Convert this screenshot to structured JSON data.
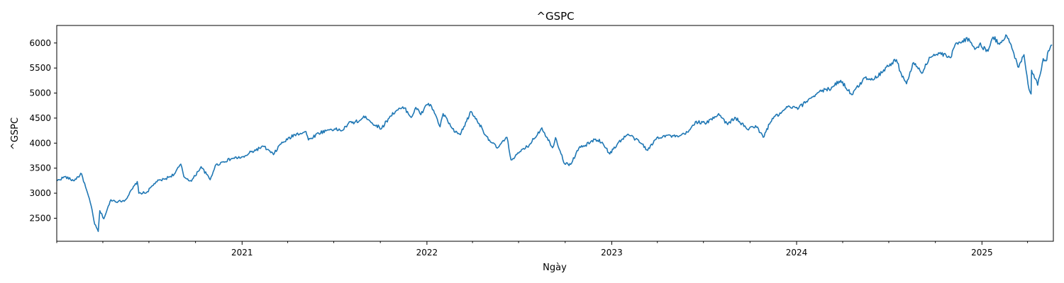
{
  "chart_data": {
    "type": "line",
    "title": "^GSPC",
    "xlabel": "Ngày",
    "ylabel": "^GSPC",
    "xlim": [
      "2020-01-01",
      "2025-05-22"
    ],
    "ylim": [
      2040,
      6350
    ],
    "yticks": [
      2500,
      3000,
      3500,
      4000,
      4500,
      5000,
      5500,
      6000
    ],
    "xticks": [
      {
        "date": "2021-01-01",
        "label": "2021"
      },
      {
        "date": "2022-01-01",
        "label": "2022"
      },
      {
        "date": "2023-01-01",
        "label": "2023"
      },
      {
        "date": "2024-01-01",
        "label": "2024"
      },
      {
        "date": "2025-01-01",
        "label": "2025"
      }
    ],
    "grid": false,
    "color": "#1f77b4",
    "series": [
      {
        "x": [
          "2020-01-02",
          "2020-01-17",
          "2020-02-03",
          "2020-02-19",
          "2020-02-27",
          "2020-03-09",
          "2020-03-16",
          "2020-03-23",
          "2020-03-26",
          "2020-04-03",
          "2020-04-17",
          "2020-05-01",
          "2020-05-15",
          "2020-06-08",
          "2020-06-11",
          "2020-06-26",
          "2020-07-15",
          "2020-08-03",
          "2020-08-20",
          "2020-09-02",
          "2020-09-08",
          "2020-09-23",
          "2020-10-12",
          "2020-10-30",
          "2020-11-09",
          "2020-11-25",
          "2020-12-15",
          "2021-01-05",
          "2021-01-15",
          "2021-02-12",
          "2021-03-04",
          "2021-03-17",
          "2021-04-15",
          "2021-05-07",
          "2021-05-12",
          "2021-06-01",
          "2021-06-25",
          "2021-07-19",
          "2021-07-30",
          "2021-08-20",
          "2021-09-02",
          "2021-09-20",
          "2021-10-04",
          "2021-10-20",
          "2021-11-03",
          "2021-11-18",
          "2021-12-01",
          "2021-12-10",
          "2021-12-20",
          "2021-12-31",
          "2022-01-04",
          "2022-01-14",
          "2022-01-27",
          "2022-02-02",
          "2022-02-24",
          "2022-03-08",
          "2022-03-29",
          "2022-04-14",
          "2022-04-29",
          "2022-05-10",
          "2022-05-20",
          "2022-06-08",
          "2022-06-16",
          "2022-07-05",
          "2022-07-22",
          "2022-08-16",
          "2022-09-06",
          "2022-09-12",
          "2022-09-30",
          "2022-10-12",
          "2022-10-28",
          "2022-11-10",
          "2022-11-30",
          "2022-12-13",
          "2022-12-28",
          "2023-01-13",
          "2023-02-02",
          "2023-02-17",
          "2023-03-02",
          "2023-03-13",
          "2023-03-31",
          "2023-04-18",
          "2023-05-12",
          "2023-06-01",
          "2023-06-15",
          "2023-07-07",
          "2023-07-31",
          "2023-08-18",
          "2023-09-01",
          "2023-09-26",
          "2023-10-12",
          "2023-10-27",
          "2023-11-14",
          "2023-12-01",
          "2023-12-14",
          "2024-01-05",
          "2024-01-24",
          "2024-02-15",
          "2024-03-05",
          "2024-03-28",
          "2024-04-19",
          "2024-05-15",
          "2024-06-03",
          "2024-06-21",
          "2024-07-16",
          "2024-07-24",
          "2024-08-05",
          "2024-08-19",
          "2024-09-06",
          "2024-09-19",
          "2024-10-09",
          "2024-10-31",
          "2024-11-11",
          "2024-12-06",
          "2024-12-18",
          "2024-12-27",
          "2025-01-13",
          "2025-01-23",
          "2025-02-03",
          "2025-02-19",
          "2025-03-03",
          "2025-03-13",
          "2025-03-25",
          "2025-04-04",
          "2025-04-08",
          "2025-04-09",
          "2025-04-17",
          "2025-04-21",
          "2025-05-02",
          "2025-05-09",
          "2025-05-12",
          "2025-05-19"
        ],
        "y": [
          3250,
          3330,
          3250,
          3386,
          3120,
          2750,
          2380,
          2237,
          2650,
          2490,
          2870,
          2830,
          2860,
          3232,
          3000,
          3010,
          3226,
          3290,
          3380,
          3580,
          3330,
          3240,
          3530,
          3270,
          3550,
          3630,
          3700,
          3720,
          3800,
          3935,
          3770,
          3974,
          4170,
          4232,
          4063,
          4200,
          4280,
          4258,
          4395,
          4440,
          4536,
          4357,
          4300,
          4536,
          4660,
          4704,
          4513,
          4712,
          4568,
          4766,
          4793,
          4660,
          4326,
          4589,
          4225,
          4170,
          4631,
          4392,
          4131,
          4001,
          3901,
          4115,
          3666,
          3831,
          3962,
          4305,
          3908,
          4110,
          3585,
          3577,
          3901,
          3956,
          4080,
          4019,
          3783,
          3999,
          4179,
          4079,
          3981,
          3856,
          4109,
          4154,
          4124,
          4221,
          4425,
          4398,
          4589,
          4370,
          4515,
          4274,
          4349,
          4117,
          4495,
          4594,
          4719,
          4697,
          4868,
          5030,
          5079,
          5254,
          4967,
          5308,
          5283,
          5464,
          5667,
          5427,
          5186,
          5608,
          5408,
          5713,
          5792,
          5705,
          6001,
          6090,
          5872,
          5970,
          5836,
          6118,
          5995,
          6144,
          5850,
          5522,
          5767,
          5074,
          4982,
          5456,
          5282,
          5158,
          5687,
          5659,
          5844,
          5958
        ]
      }
    ]
  }
}
